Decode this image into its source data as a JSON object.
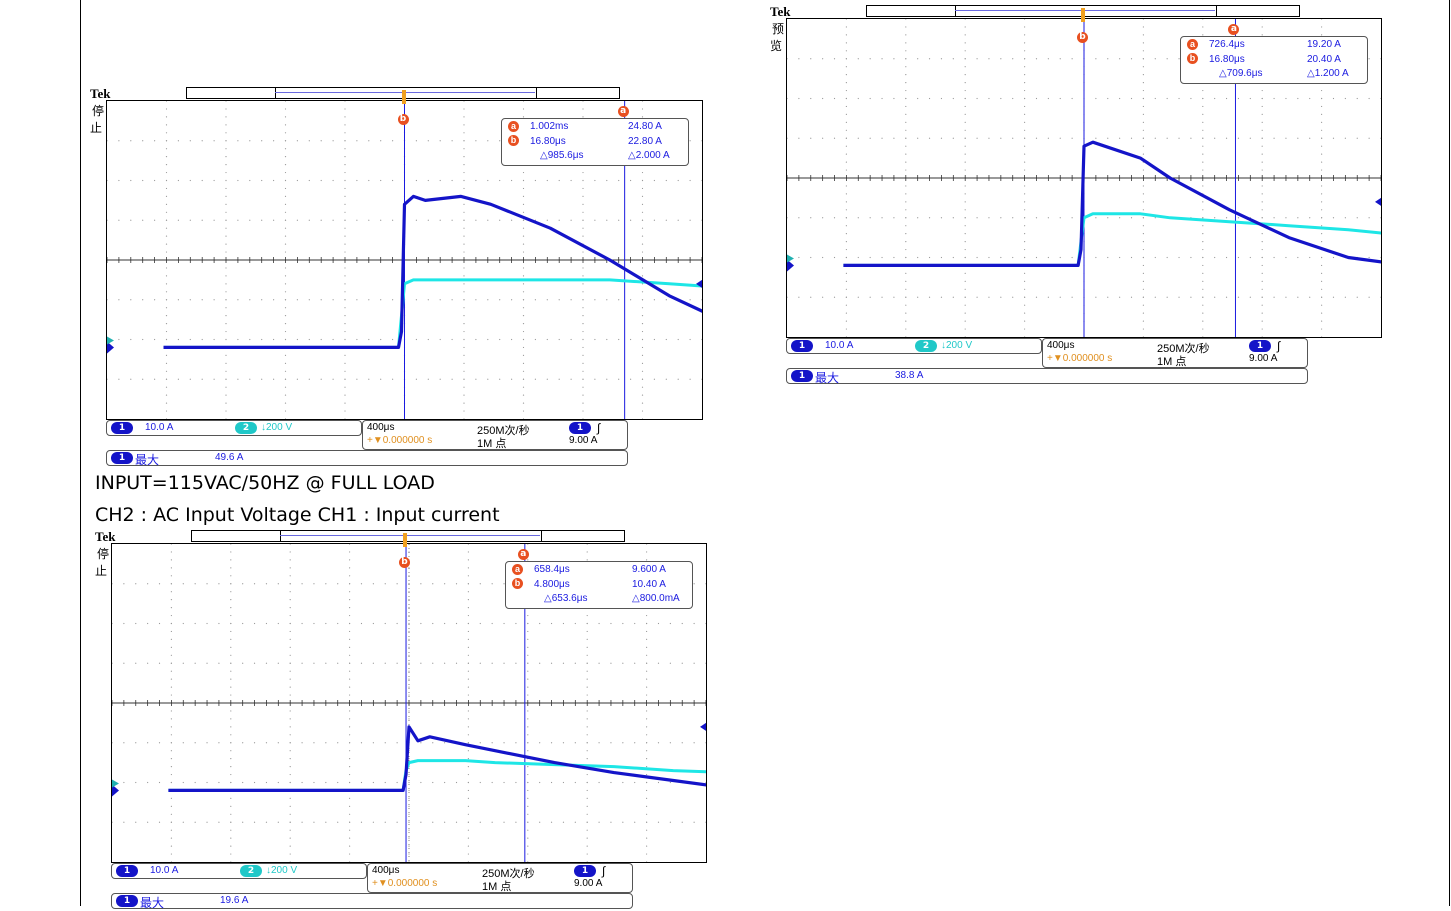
{
  "captions": {
    "line1": "INPUT=115VAC/50HZ @ FULL LOAD",
    "line2": "CH2 : AC Input Voltage    CH1 : Input current"
  },
  "colors": {
    "ch1": "#1414c8",
    "ch2": "#1ee6e6",
    "cursor": "#1a1ae0",
    "marker": "#e85020"
  },
  "chart_data": [
    {
      "type": "line",
      "scope": {
        "brand": "Tek",
        "state": "停止"
      },
      "marker_a": "a",
      "marker_b": "b",
      "cursors": {
        "a_time": "1.002ms",
        "a_value": "24.80 A",
        "b_time": "16.80μs",
        "b_value": "22.80 A",
        "delta_time": "△985.6μs",
        "delta_value": "△2.000 A"
      },
      "status": {
        "ch1_num": "1",
        "ch1_scale": "10.0 A",
        "ch2_num": "2",
        "ch2_scale": "↓200 V",
        "timebase": "400μs",
        "sample_rate": "250M次/秒",
        "trigger_pos": "+▼0.000000 s",
        "record": "1M 点",
        "trig_num": "1",
        "trig_slope": "∫",
        "trig_level": "9.00 A",
        "meas_num": "1",
        "meas_label": "最大",
        "meas_value": "49.6 A"
      },
      "x": [
        -4,
        -0.05,
        0,
        0.05,
        0.2,
        0.4,
        1,
        1.5,
        2.5,
        3.5,
        4.5,
        5.5,
        6
      ],
      "series": [
        {
          "y": [
            -2.2,
            -2.2,
            -1.8,
            1.4,
            1.6,
            1.5,
            1.6,
            1.4,
            0.8,
            0.0,
            -0.9,
            -1.6,
            -2.0
          ]
        },
        {
          "y": [
            -2.2,
            -2.2,
            -1.4,
            -0.6,
            -0.5,
            -0.5,
            -0.5,
            -0.5,
            -0.5,
            -0.5,
            -0.6,
            -0.7,
            -0.75
          ]
        }
      ],
      "cursor_a_div": 3.75,
      "cursor_b_div": 0.05
    },
    {
      "type": "line",
      "scope": {
        "brand": "Tek",
        "state": "预览"
      },
      "marker_a": "a",
      "marker_b": "b",
      "cursors": {
        "a_time": "726.4μs",
        "a_value": "19.20 A",
        "b_time": "16.80μs",
        "b_value": "20.40 A",
        "delta_time": "△709.6μs",
        "delta_value": "△1.200 A"
      },
      "status": {
        "ch1_num": "1",
        "ch1_scale": "10.0 A",
        "ch2_num": "2",
        "ch2_scale": "↓200 V",
        "timebase": "400μs",
        "sample_rate": "250M次/秒",
        "trigger_pos": "+▼0.000000 s",
        "record": "1M 点",
        "trig_num": "1",
        "trig_slope": "∫",
        "trig_level": "9.00 A",
        "meas_num": "1",
        "meas_label": "最大",
        "meas_value": "38.8 A"
      },
      "x": [
        -4,
        -0.05,
        0,
        0.05,
        0.2,
        0.4,
        1,
        1.5,
        2.5,
        3.5,
        4.5,
        5.5,
        6
      ],
      "series": [
        {
          "y": [
            -2.2,
            -2.2,
            -1.8,
            0.8,
            0.9,
            0.8,
            0.5,
            0.0,
            -0.8,
            -1.5,
            -2.0,
            -2.2,
            -2.2
          ]
        },
        {
          "y": [
            -2.2,
            -2.2,
            -1.6,
            -1.0,
            -0.9,
            -0.9,
            -0.9,
            -1.0,
            -1.1,
            -1.2,
            -1.3,
            -1.45,
            -1.5
          ]
        }
      ],
      "cursor_a_div": 2.6,
      "cursor_b_div": 0.05
    },
    {
      "type": "line",
      "scope": {
        "brand": "Tek",
        "state": "停止"
      },
      "marker_a": "a",
      "marker_b": "b",
      "cursors": {
        "a_time": "658.4μs",
        "a_value": "9.600 A",
        "b_time": "4.800μs",
        "b_value": "10.40 A",
        "delta_time": "△653.6μs",
        "delta_value": "△800.0mA"
      },
      "status": {
        "ch1_num": "1",
        "ch1_scale": "10.0 A",
        "ch2_num": "2",
        "ch2_scale": "↓200 V",
        "timebase": "400μs",
        "sample_rate": "250M次/秒",
        "trigger_pos": "+▼0.000000 s",
        "record": "1M 点",
        "trig_num": "1",
        "trig_slope": "∫",
        "trig_level": "9.00 A",
        "meas_num": "1",
        "meas_label": "最大",
        "meas_value": "19.6 A"
      },
      "x": [
        -4,
        -0.05,
        0,
        0.05,
        0.2,
        0.4,
        1,
        1.5,
        2.5,
        3.5,
        4.5,
        5.5,
        6
      ],
      "series": [
        {
          "y": [
            -2.2,
            -2.2,
            -1.8,
            -0.6,
            -0.95,
            -0.85,
            -1.05,
            -1.2,
            -1.5,
            -1.75,
            -1.95,
            -2.15,
            -2.2
          ]
        },
        {
          "y": [
            -2.2,
            -2.2,
            -1.7,
            -1.5,
            -1.45,
            -1.45,
            -1.45,
            -1.5,
            -1.55,
            -1.6,
            -1.7,
            -1.75,
            -1.8
          ]
        }
      ],
      "cursor_a_div": 2.0,
      "cursor_b_div": 0.0
    }
  ]
}
